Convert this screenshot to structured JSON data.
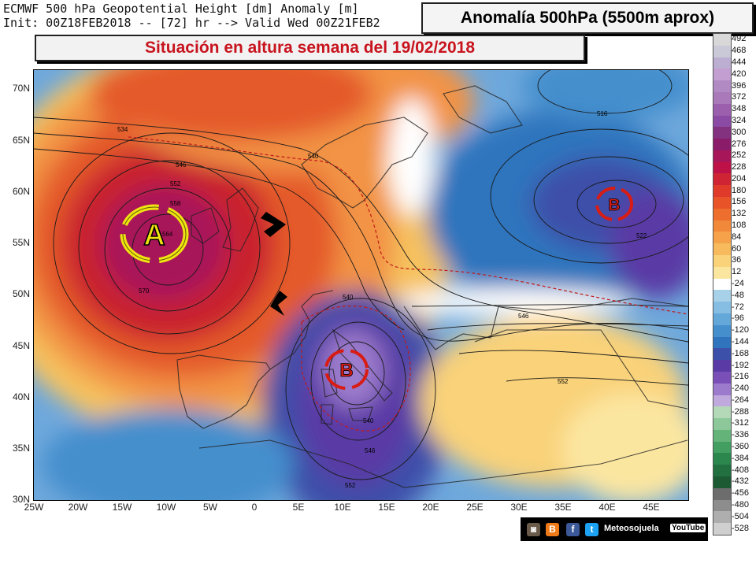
{
  "header": {
    "line1": "ECMWF 500 hPa Geopotential Height [dm] Anomaly [m]",
    "line2": "Init: 00Z18FEB2018 -- [72] hr --> Valid Wed 00Z21FEB2"
  },
  "title_box": "Anomalía 500hPa (5500m aprox)",
  "situation_box": "Situación en altura semana del 19/02/2018",
  "lat_labels": [
    "70N",
    "65N",
    "60N",
    "55N",
    "50N",
    "45N",
    "40N",
    "35N",
    "30N"
  ],
  "lon_labels": [
    "25W",
    "20W",
    "15W",
    "10W",
    "5W",
    "0",
    "5E",
    "10E",
    "15E",
    "20E",
    "25E",
    "30E",
    "35E",
    "40E",
    "45E"
  ],
  "legend": {
    "labels": [
      "492",
      "468",
      "444",
      "420",
      "396",
      "372",
      "348",
      "324",
      "300",
      "276",
      "252",
      "228",
      "204",
      "180",
      "156",
      "132",
      "108",
      "84",
      "60",
      "36",
      "12",
      "-24",
      "-48",
      "-72",
      "-96",
      "-120",
      "-144",
      "-168",
      "-192",
      "-216",
      "-240",
      "-264",
      "-288",
      "-312",
      "-336",
      "-360",
      "-384",
      "-408",
      "-432",
      "-456",
      "-480",
      "-504",
      "-528"
    ],
    "colors": [
      "#d8d8d8",
      "#c9c9d8",
      "#bcaed0",
      "#c29fd0",
      "#b18ac4",
      "#a979b9",
      "#9b5fae",
      "#8b4aa3",
      "#83327f",
      "#8a1c6a",
      "#a8165a",
      "#bd1147",
      "#cf2433",
      "#df3a2a",
      "#e85428",
      "#ee6e2d",
      "#f2883a",
      "#f5a24a",
      "#f7bb5e",
      "#f9d279",
      "#fbe6a0",
      "#ffffff",
      "#a7d0e9",
      "#86bde2",
      "#64a7d9",
      "#458fcd",
      "#2f74bd",
      "#3c4fa9",
      "#5a3aa5",
      "#7a50b8",
      "#9c7bcc",
      "#c0a9dd",
      "#b4d9b8",
      "#8dc89a",
      "#64b47a",
      "#429e61",
      "#2b874d",
      "#226f40",
      "#1c5a34",
      "#6d6d6d",
      "#8d8d8d",
      "#aeaeae",
      "#cfcfcf"
    ]
  },
  "map_labels": {
    "high": "A",
    "low_atlantic": "B",
    "low_urals": "B",
    "contours": [
      "534",
      "540",
      "546",
      "552",
      "558",
      "564",
      "570",
      "540",
      "546",
      "552",
      "540",
      "516",
      "522",
      "546",
      "552"
    ]
  },
  "social": {
    "name": "Meteosojuela",
    "youtube": "YouTube"
  },
  "colors": {
    "high_core": "#b81428",
    "low_core": "#4a2d94",
    "arrow_red": "#d81c14",
    "arrow_yellow": "#f0e410"
  }
}
